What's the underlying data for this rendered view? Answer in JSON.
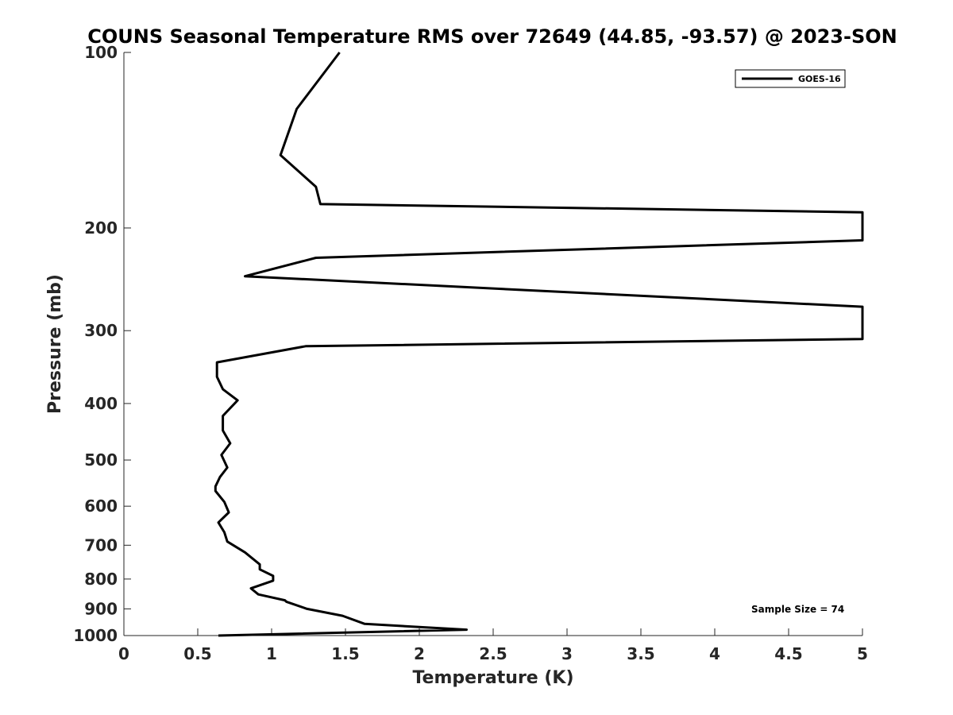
{
  "chart_data": {
    "type": "line",
    "title": "COUNS Seasonal Temperature RMS over 72649 (44.85, -93.57) @ 2023-SON",
    "xlabel": "Temperature (K)",
    "ylabel": "Pressure (mb)",
    "xlim": [
      0,
      5
    ],
    "ylim": [
      100,
      1000
    ],
    "y_scale": "log",
    "y_reversed": true,
    "grid": false,
    "legend_position": "top-right",
    "x_ticks": [
      0,
      0.5,
      1,
      1.5,
      2,
      2.5,
      3,
      3.5,
      4,
      4.5,
      5
    ],
    "x_tick_labels": [
      "0",
      "0.5",
      "1",
      "1.5",
      "2",
      "2.5",
      "3",
      "3.5",
      "4",
      "4.5",
      "5"
    ],
    "y_ticks": [
      100,
      200,
      300,
      400,
      500,
      600,
      700,
      800,
      900,
      1000
    ],
    "y_tick_labels": [
      "100",
      "200",
      "300",
      "400",
      "500",
      "600",
      "700",
      "800",
      "900",
      "1000"
    ],
    "series": [
      {
        "name": "GOES-16",
        "color": "#000000",
        "points": [
          [
            1.46,
            100
          ],
          [
            1.17,
            125
          ],
          [
            1.06,
            150
          ],
          [
            1.3,
            170
          ],
          [
            1.33,
            182
          ],
          [
            5.0,
            188
          ],
          [
            5.0,
            210
          ],
          [
            1.3,
            225
          ],
          [
            0.82,
            242
          ],
          [
            5.0,
            273
          ],
          [
            5.0,
            310
          ],
          [
            1.23,
            319
          ],
          [
            0.63,
            340
          ],
          [
            0.63,
            360
          ],
          [
            0.67,
            378
          ],
          [
            0.77,
            395
          ],
          [
            0.67,
            420
          ],
          [
            0.67,
            445
          ],
          [
            0.72,
            468
          ],
          [
            0.66,
            490
          ],
          [
            0.7,
            515
          ],
          [
            0.65,
            535
          ],
          [
            0.62,
            555
          ],
          [
            0.62,
            565
          ],
          [
            0.68,
            590
          ],
          [
            0.71,
            615
          ],
          [
            0.64,
            640
          ],
          [
            0.68,
            665
          ],
          [
            0.7,
            690
          ],
          [
            0.82,
            720
          ],
          [
            0.92,
            755
          ],
          [
            0.92,
            770
          ],
          [
            1.01,
            790
          ],
          [
            1.01,
            805
          ],
          [
            0.86,
            830
          ],
          [
            0.91,
            850
          ],
          [
            1.09,
            870
          ],
          [
            1.1,
            875
          ],
          [
            1.24,
            900
          ],
          [
            1.48,
            925
          ],
          [
            1.63,
            955
          ],
          [
            2.32,
            977
          ],
          [
            0.64,
            1000
          ]
        ]
      }
    ],
    "annotation": "Sample Size = 74"
  }
}
